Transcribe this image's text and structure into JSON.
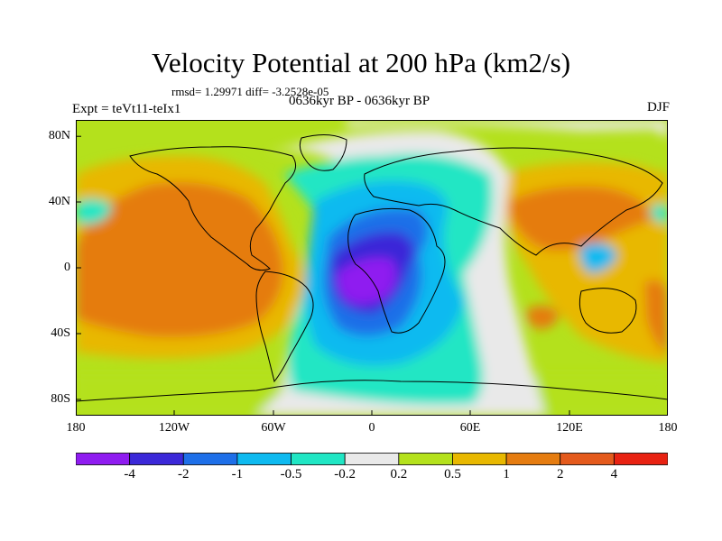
{
  "title": "Velocity Potential at 200 hPa (km2/s)",
  "stats": "rmsd= 1.29971 diff= -3.2528e-05",
  "experiment": "Expt = teVt11-teIx1",
  "period": "0636kyr BP - 0636kyr BP",
  "season": "DJF",
  "lat_labels": [
    "80N",
    "40N",
    "0",
    "40S",
    "80S"
  ],
  "lon_labels": [
    "180",
    "120W",
    "60W",
    "0",
    "60E",
    "120E",
    "180"
  ],
  "colorbar": {
    "labels": [
      "-4",
      "-2",
      "-1",
      "-0.5",
      "-0.2",
      "0.2",
      "0.5",
      "1",
      "2",
      "4"
    ],
    "colors": [
      "#8f1cf0",
      "#3b28d8",
      "#1e6fe8",
      "#0ebaf0",
      "#20e6c4",
      "#e9e9e9",
      "#b4e11c",
      "#e8b800",
      "#e57c10",
      "#e45a1c",
      "#e82212"
    ]
  },
  "palette": {
    "ocean_bg": "#b4e11c",
    "neutral": "#e9e9e9",
    "orange": "#e8b800",
    "dark_orange": "#e57c10",
    "cyan": "#20e6c4",
    "light_blue": "#0ebaf0",
    "blue": "#1e6fe8",
    "dark_blue": "#3b28d8",
    "purple": "#8f1cf0"
  }
}
